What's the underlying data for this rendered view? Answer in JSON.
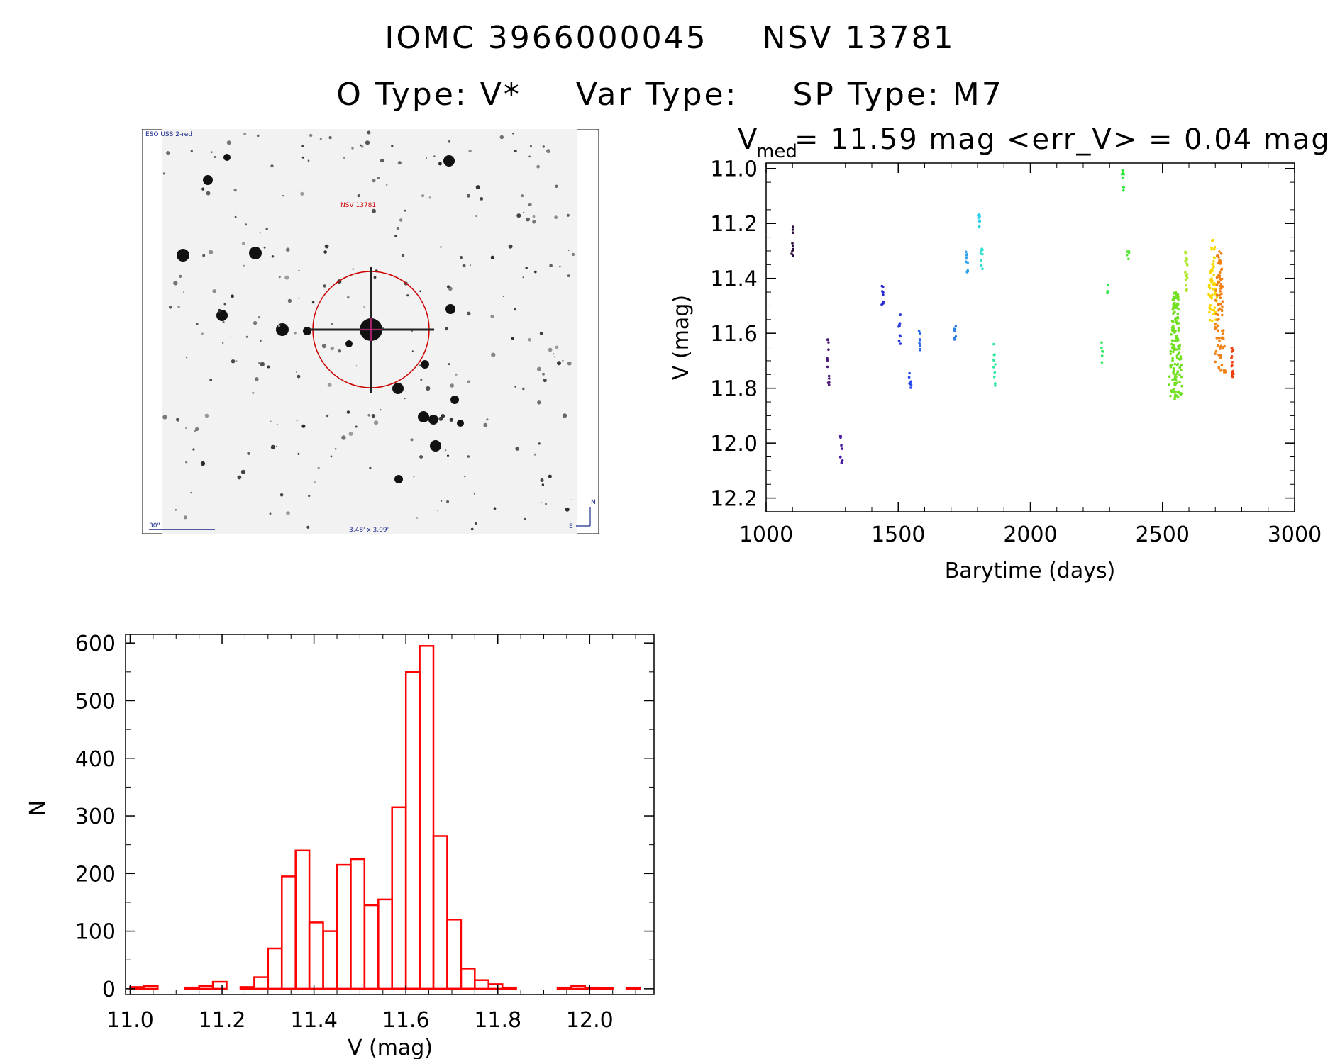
{
  "header": {
    "line1": [
      "IOMC 3966000045",
      "NSV 13781"
    ],
    "line2": [
      "O Type: V*",
      "Var Type:",
      "SP Type: M7"
    ]
  },
  "image_panel": {
    "survey_label": "ESO USS 2-red",
    "target_label": "NSV 13781",
    "scale_label": "30\"",
    "size_label": "3.48' x 3.09'",
    "north_label": "N",
    "east_label": "E",
    "marker_color": "#cc0000"
  },
  "light_curve": {
    "title_main": "V",
    "title_sub": "med",
    "title_rest": "= 11.59 mag <err_V> = 0.04 mag",
    "chart_data": {
      "type": "scatter",
      "title": "V_med = 11.59 mag <err_V> = 0.04 mag",
      "xlabel": "Barytime (days)",
      "ylabel": "V (mag)",
      "xlim": [
        1000,
        3000
      ],
      "ylim": [
        12.25,
        10.98
      ],
      "xticks": [
        1000,
        1500,
        2000,
        2500,
        3000
      ],
      "yticks": [
        11.0,
        11.2,
        11.4,
        11.6,
        11.8,
        12.0,
        12.2
      ],
      "ytick_labels": [
        "11.0",
        "11.2",
        "11.4",
        "11.6",
        "11.8",
        "12.0",
        "12.2"
      ],
      "clusters": [
        {
          "x": 1098,
          "y_min": 11.21,
          "y_max": 11.33,
          "n": 10,
          "color": "#2a0a3a"
        },
        {
          "x": 1235,
          "y_min": 11.62,
          "y_max": 11.79,
          "n": 12,
          "color": "#4b1a78"
        },
        {
          "x": 1285,
          "y_min": 11.94,
          "y_max": 12.09,
          "n": 12,
          "color": "#4b1aa0"
        },
        {
          "x": 1440,
          "y_min": 11.42,
          "y_max": 11.5,
          "n": 8,
          "color": "#2a2ad0"
        },
        {
          "x": 1505,
          "y_min": 11.53,
          "y_max": 11.65,
          "n": 10,
          "color": "#2a3ae0"
        },
        {
          "x": 1545,
          "y_min": 11.72,
          "y_max": 11.82,
          "n": 8,
          "color": "#2a4af0"
        },
        {
          "x": 1580,
          "y_min": 11.55,
          "y_max": 11.68,
          "n": 8,
          "color": "#2a6af0"
        },
        {
          "x": 1715,
          "y_min": 11.57,
          "y_max": 11.63,
          "n": 8,
          "color": "#3080e0"
        },
        {
          "x": 1760,
          "y_min": 11.27,
          "y_max": 11.38,
          "n": 10,
          "color": "#30a0e8"
        },
        {
          "x": 1805,
          "y_min": 11.15,
          "y_max": 11.22,
          "n": 10,
          "color": "#30d0e8"
        },
        {
          "x": 1815,
          "y_min": 11.29,
          "y_max": 11.38,
          "n": 8,
          "color": "#30e0d0"
        },
        {
          "x": 1865,
          "y_min": 11.63,
          "y_max": 11.8,
          "n": 12,
          "color": "#30e8a0"
        },
        {
          "x": 2272,
          "y_min": 11.63,
          "y_max": 11.71,
          "n": 6,
          "color": "#30e860"
        },
        {
          "x": 2293,
          "y_min": 11.42,
          "y_max": 11.46,
          "n": 6,
          "color": "#30e850"
        },
        {
          "x": 2350,
          "y_min": 11.0,
          "y_max": 11.08,
          "n": 10,
          "color": "#30e840"
        },
        {
          "x": 2370,
          "y_min": 11.3,
          "y_max": 11.34,
          "n": 6,
          "color": "#50e830"
        },
        {
          "x": 2550,
          "y_min": 11.45,
          "y_max": 11.84,
          "n": 150,
          "color": "#70e020",
          "spread": 14
        },
        {
          "x": 2590,
          "y_min": 11.3,
          "y_max": 11.45,
          "n": 20,
          "color": "#b0e830"
        },
        {
          "x": 2690,
          "y_min": 11.26,
          "y_max": 11.56,
          "n": 60,
          "color": "#f8d800",
          "spread": 10
        },
        {
          "x": 2715,
          "y_min": 11.3,
          "y_max": 11.75,
          "n": 90,
          "color": "#f08010",
          "spread": 12
        },
        {
          "x": 2765,
          "y_min": 11.65,
          "y_max": 11.78,
          "n": 14,
          "color": "#f04010"
        }
      ]
    }
  },
  "histogram": {
    "chart_data": {
      "type": "bar",
      "xlabel": "V (mag)",
      "ylabel": "N",
      "xlim": [
        10.99,
        12.14
      ],
      "ylim": [
        -10,
        615
      ],
      "xticks": [
        11.0,
        11.2,
        11.4,
        11.6,
        11.8,
        12.0
      ],
      "xtick_labels": [
        "11.0",
        "11.2",
        "11.4",
        "11.6",
        "11.8",
        "12.0"
      ],
      "yticks": [
        0,
        100,
        200,
        300,
        400,
        500,
        600
      ],
      "bin_start": 11.0,
      "bin_width": 0.03,
      "values": [
        3,
        5,
        0,
        0,
        2,
        5,
        12,
        0,
        3,
        20,
        70,
        195,
        240,
        115,
        100,
        215,
        225,
        145,
        155,
        315,
        550,
        595,
        265,
        120,
        35,
        15,
        8,
        2,
        0,
        0,
        0,
        2,
        5,
        2,
        1,
        0,
        2
      ],
      "bar_color": "#ff0000"
    }
  }
}
